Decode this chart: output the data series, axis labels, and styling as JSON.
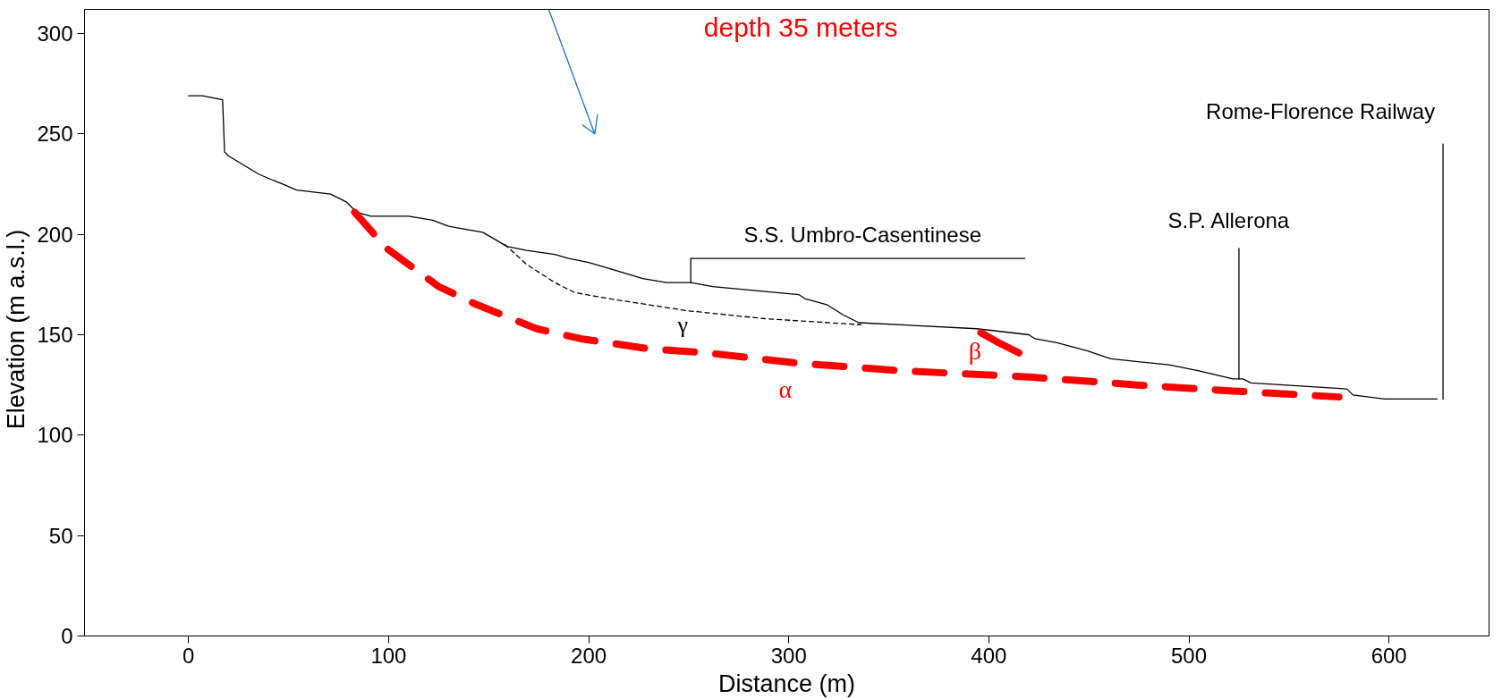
{
  "chart_data": {
    "type": "line",
    "xlabel": "Distance (m)",
    "ylabel": "Elevation  (m  a.s.l.)",
    "xlim": [
      -52,
      650
    ],
    "ylim": [
      0,
      312
    ],
    "xticks": [
      0,
      100,
      200,
      300,
      400,
      500,
      600
    ],
    "yticks": [
      0,
      50,
      100,
      150,
      200,
      250,
      300
    ],
    "grid": false,
    "series": [
      {
        "color": "#000000",
        "line_style": "solid",
        "x": [
          0,
          7,
          17,
          18,
          20,
          30,
          35,
          42,
          47,
          54,
          71,
          79,
          84,
          91,
          110,
          122,
          130,
          147,
          154,
          159,
          169,
          183,
          190,
          200,
          217,
          227,
          239,
          251,
          262,
          305,
          308,
          319,
          327,
          335,
          394,
          420,
          423,
          434,
          449,
          461,
          490,
          505,
          522,
          527,
          531,
          579,
          582,
          598,
          624
        ],
        "values": [
          269,
          269,
          267,
          241,
          239,
          233,
          230,
          227,
          225,
          222,
          220,
          216,
          211,
          209,
          209,
          207,
          204,
          201,
          197,
          194,
          192,
          190,
          188,
          186,
          181,
          178,
          176,
          176,
          174,
          170,
          168,
          165,
          160,
          156,
          153,
          150,
          148,
          146,
          142,
          138,
          135,
          132,
          128,
          128,
          126,
          123,
          120,
          118,
          118
        ]
      },
      {
        "color": "#000000",
        "line_style": "dashed",
        "x": [
          158,
          169,
          183,
          193,
          210,
          249,
          288,
          336
        ],
        "values": [
          195,
          185,
          176,
          171,
          168,
          162,
          158,
          155
        ]
      },
      {
        "color": "#ff0000",
        "line_style": "dashed",
        "x": [
          83,
          99,
          125,
          144,
          174,
          196,
          230,
          259,
          303,
          357,
          420,
          474,
          522,
          575
        ],
        "values": [
          211,
          193,
          174,
          165,
          153,
          148,
          143,
          141,
          136,
          132,
          129,
          125,
          122,
          119
        ]
      },
      {
        "color": "#ff0000",
        "line_style": "solid",
        "x": [
          396,
          405,
          415
        ],
        "values": [
          151,
          146,
          141
        ]
      },
      {
        "color": "#000000",
        "line_style": "solid",
        "x": [
          251,
          251,
          418
        ],
        "values": [
          176,
          188,
          188
        ]
      },
      {
        "color": "#000000",
        "line_style": "solid",
        "x": [
          525,
          525
        ],
        "values": [
          128,
          193
        ]
      },
      {
        "color": "#000000",
        "line_style": "solid",
        "x": [
          627,
          627
        ],
        "values": [
          118,
          245
        ]
      },
      {
        "color": "#1f6fd0",
        "line_style": "solid",
        "x": [
          180,
          203,
          197,
          203,
          204.4
        ],
        "values": [
          312,
          250,
          254.4,
          250,
          259.6
        ]
      }
    ],
    "annotations": [
      "depth 35 meters",
      "S.S. Umbro-Casentinese",
      "S.P. Allerona",
      "Rome-Florence Railway",
      "α",
      "β",
      "γ"
    ]
  }
}
